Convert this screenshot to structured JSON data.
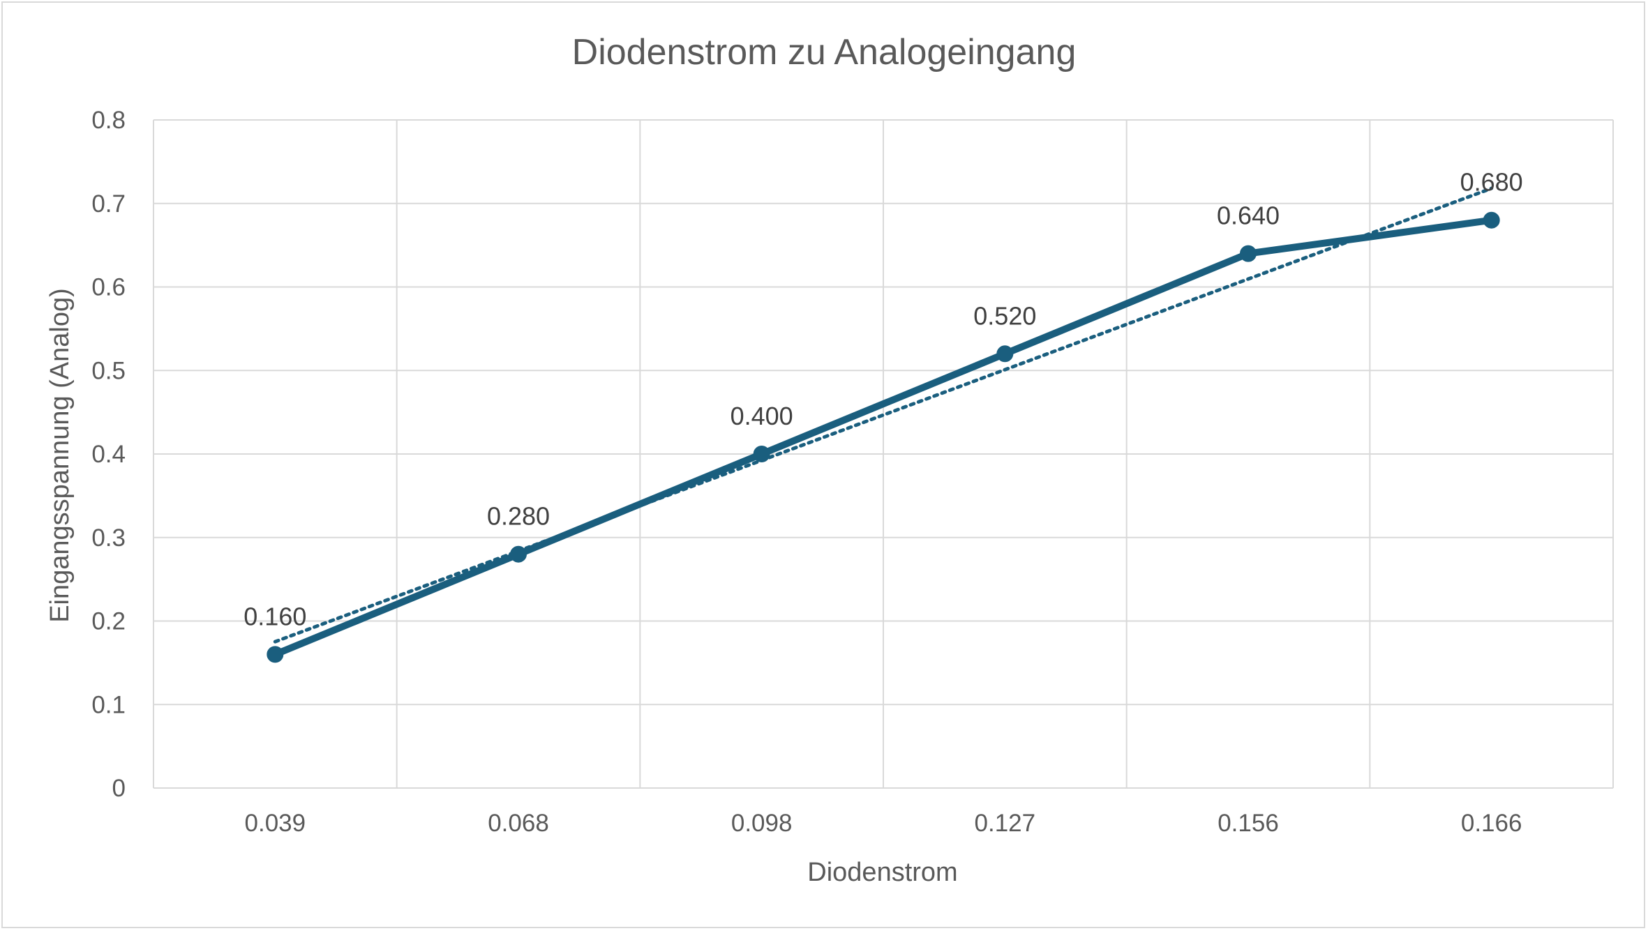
{
  "chart_data": {
    "type": "line",
    "title": "Diodenstrom zu Analogeingang",
    "xlabel": "Diodenstrom",
    "ylabel": "Eingangsspannung (Analog)",
    "categories": [
      "0.039",
      "0.068",
      "0.098",
      "0.127",
      "0.156",
      "0.166"
    ],
    "series": [
      {
        "values": [
          0.16,
          0.28,
          0.4,
          0.52,
          0.64,
          0.68
        ],
        "data_labels": [
          "0.160",
          "0.280",
          "0.400",
          "0.520",
          "0.640",
          "0.680"
        ],
        "color": "#1a5e7e",
        "markers": true
      }
    ],
    "trendline": {
      "type": "linear",
      "style": "dotted",
      "color": "#1a5e7e"
    },
    "ylim": [
      0,
      0.8
    ],
    "yticks": [
      "0",
      "0.1",
      "0.2",
      "0.3",
      "0.4",
      "0.5",
      "0.6",
      "0.7",
      "0.8"
    ],
    "grid": true,
    "legend": "none"
  }
}
